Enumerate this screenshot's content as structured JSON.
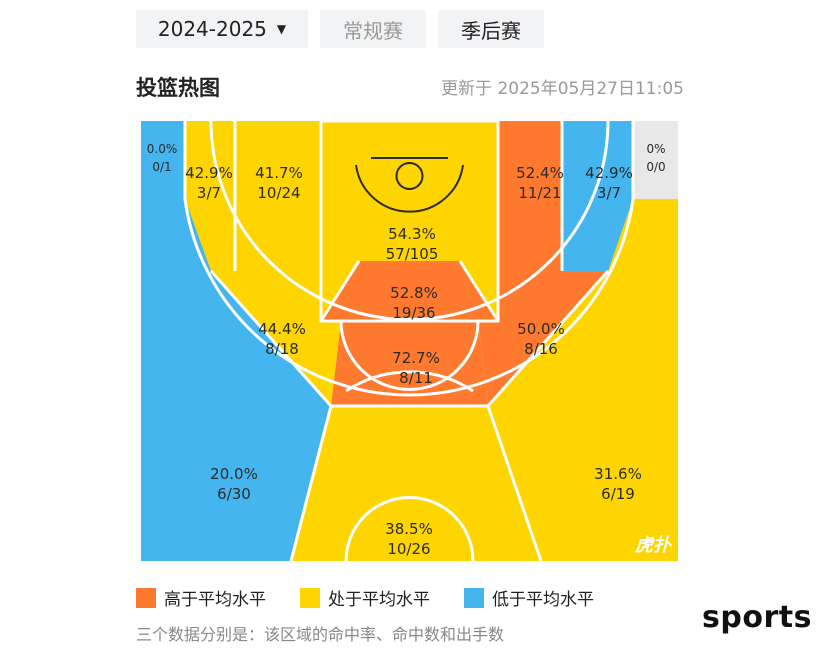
{
  "header": {
    "season_label": "2024-2025",
    "regular_label": "常规赛",
    "playoff_label": "季后赛"
  },
  "title": "投篮热图",
  "updated": "更新于 2025年05月27日11:05",
  "colors": {
    "above": "#FF7A2F",
    "average": "#FFD500",
    "below": "#45B5F0",
    "none": "#E8E8E8",
    "lines": "#FFFFFF"
  },
  "zones": [
    {
      "id": "left-corner-3",
      "pct": "20.0%",
      "made_att": "6/30",
      "level": "below"
    },
    {
      "id": "right-corner-3",
      "pct": "31.6%",
      "made_att": "6/19",
      "level": "average"
    },
    {
      "id": "top-3",
      "pct": "38.5%",
      "made_att": "10/26",
      "level": "average"
    },
    {
      "id": "left-wing-mid",
      "pct": "44.4%",
      "made_att": "8/18",
      "level": "average"
    },
    {
      "id": "top-mid",
      "pct": "72.7%",
      "made_att": "8/11",
      "level": "above"
    },
    {
      "id": "right-wing-mid",
      "pct": "50.0%",
      "made_att": "8/16",
      "level": "above"
    },
    {
      "id": "paint-upper",
      "pct": "52.8%",
      "made_att": "19/36",
      "level": "above"
    },
    {
      "id": "restricted-area",
      "pct": "54.3%",
      "made_att": "57/105",
      "level": "average"
    },
    {
      "id": "left-baseline-mid",
      "pct": "41.7%",
      "made_att": "10/24",
      "level": "average"
    },
    {
      "id": "left-corner-mid",
      "pct": "42.9%",
      "made_att": "3/7",
      "level": "average"
    },
    {
      "id": "right-baseline-mid",
      "pct": "52.4%",
      "made_att": "11/21",
      "level": "above"
    },
    {
      "id": "right-corner-mid",
      "pct": "42.9%",
      "made_att": "3/7",
      "level": "below"
    },
    {
      "id": "left-corner-edge",
      "pct": "0.0%",
      "made_att": "0/1",
      "level": "below"
    },
    {
      "id": "right-corner-edge",
      "pct": "0%",
      "made_att": "0/0",
      "level": "none"
    }
  ],
  "watermark": "虎扑",
  "legend": {
    "above": "高于平均水平",
    "average": "处于平均水平",
    "below": "低于平均水平"
  },
  "note": "三个数据分别是：该区域的命中率、命中数和出手数",
  "brand": "sports"
}
